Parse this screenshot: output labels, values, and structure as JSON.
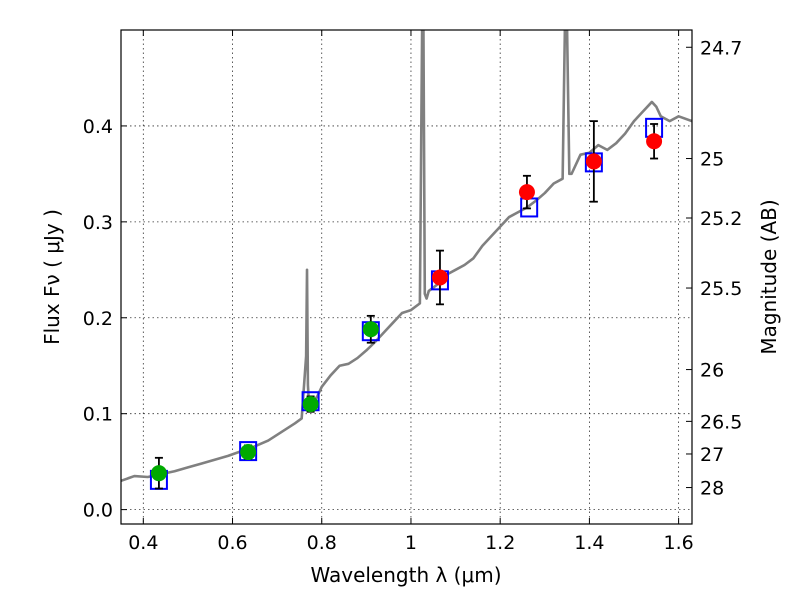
{
  "chart_data": {
    "type": "scatter",
    "title": "",
    "xlabel": "Wavelength  λ (μm)",
    "ylabel": "Flux  Fν  ( μJy )",
    "y2label": "Magnitude (AB)",
    "xlim": [
      0.35,
      1.63
    ],
    "ylim": [
      -0.015,
      0.5
    ],
    "grid": true,
    "x_ticks": [
      0.4,
      0.6,
      0.8,
      1.0,
      1.2,
      1.4,
      1.6
    ],
    "x_tick_labels": [
      "0.4",
      "0.6",
      "0.8",
      "1",
      "1.2",
      "1.4",
      "1.6"
    ],
    "y_ticks": [
      0.0,
      0.1,
      0.2,
      0.3,
      0.4
    ],
    "y_tick_labels": [
      "0.0",
      "0.1",
      "0.2",
      "0.3",
      "0.4"
    ],
    "y2_ticks": [
      {
        "label": "24.7",
        "flux": 0.482
      },
      {
        "label": "25",
        "flux": 0.366
      },
      {
        "label": "25.2",
        "flux": 0.304
      },
      {
        "label": "25.5",
        "flux": 0.231
      },
      {
        "label": "26",
        "flux": 0.146
      },
      {
        "label": "26.5",
        "flux": 0.092
      },
      {
        "label": "27",
        "flux": 0.058
      },
      {
        "label": "28",
        "flux": 0.023
      }
    ],
    "colors": {
      "spectrum": "#808080",
      "model_box": "#0000ff",
      "green_points": "#00aa00",
      "red_points": "#ff0000",
      "errorbar": "#000000"
    },
    "series": [
      {
        "kind": "spectrum",
        "x": [
          0.35,
          0.38,
          0.41,
          0.44,
          0.47,
          0.5,
          0.53,
          0.56,
          0.59,
          0.62,
          0.65,
          0.68,
          0.7,
          0.72,
          0.74,
          0.755,
          0.765,
          0.767,
          0.769,
          0.772,
          0.78,
          0.79,
          0.8,
          0.82,
          0.84,
          0.86,
          0.88,
          0.9,
          0.92,
          0.94,
          0.96,
          0.98,
          1.0,
          1.02,
          1.025,
          1.028,
          1.031,
          1.035,
          1.04,
          1.06,
          1.08,
          1.1,
          1.12,
          1.14,
          1.16,
          1.18,
          1.2,
          1.22,
          1.24,
          1.26,
          1.28,
          1.3,
          1.32,
          1.34,
          1.345,
          1.35,
          1.355,
          1.36,
          1.38,
          1.4,
          1.42,
          1.44,
          1.46,
          1.48,
          1.5,
          1.52,
          1.54,
          1.55,
          1.56,
          1.58,
          1.6,
          1.63
        ],
        "y": [
          0.03,
          0.035,
          0.034,
          0.037,
          0.04,
          0.044,
          0.048,
          0.052,
          0.056,
          0.061,
          0.066,
          0.072,
          0.078,
          0.084,
          0.09,
          0.095,
          0.16,
          0.25,
          0.13,
          0.105,
          0.112,
          0.118,
          0.128,
          0.14,
          0.15,
          0.152,
          0.158,
          0.166,
          0.175,
          0.185,
          0.195,
          0.205,
          0.208,
          0.215,
          0.5,
          0.5,
          0.225,
          0.22,
          0.228,
          0.235,
          0.245,
          0.25,
          0.255,
          0.262,
          0.275,
          0.285,
          0.295,
          0.305,
          0.31,
          0.315,
          0.322,
          0.33,
          0.34,
          0.345,
          0.5,
          0.5,
          0.35,
          0.35,
          0.37,
          0.372,
          0.38,
          0.375,
          0.382,
          0.392,
          0.405,
          0.415,
          0.425,
          0.42,
          0.41,
          0.405,
          0.41,
          0.405
        ]
      },
      {
        "kind": "model_boxes",
        "x": [
          0.435,
          0.635,
          0.775,
          0.91,
          1.065,
          1.265,
          1.41,
          1.545
        ],
        "y": [
          0.031,
          0.061,
          0.113,
          0.186,
          0.239,
          0.315,
          0.362,
          0.398
        ]
      },
      {
        "kind": "green_points",
        "x": [
          0.435,
          0.635,
          0.775,
          0.91
        ],
        "y": [
          0.038,
          0.06,
          0.11,
          0.188
        ],
        "yerr": [
          0.016,
          0.007,
          0.008,
          0.014
        ]
      },
      {
        "kind": "red_points",
        "x": [
          1.065,
          1.26,
          1.41,
          1.545
        ],
        "y": [
          0.242,
          0.331,
          0.363,
          0.384
        ],
        "yerr": [
          0.028,
          0.017,
          0.042,
          0.018
        ]
      }
    ]
  }
}
